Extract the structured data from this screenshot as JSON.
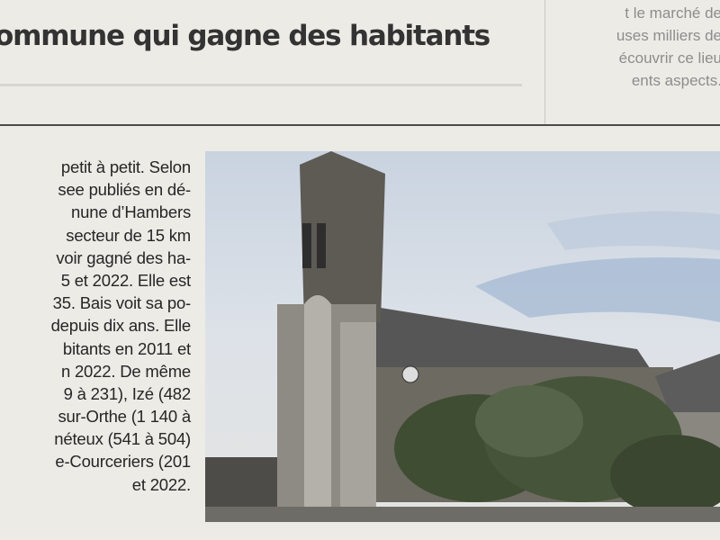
{
  "headline": "ommune qui gagne des habitants",
  "side_column": [
    "t le marché de",
    "uses milliers de",
    "écouvrir ce lieu",
    "ents aspects."
  ],
  "article_lines": [
    "petit à petit. Selon",
    "see publiés en dé-",
    "nune d’Hambers",
    "secteur de 15 km",
    "voir gagné des ha-",
    "5 et 2022. Elle est",
    "35. Bais voit sa po-",
    "depuis dix ans. Elle",
    "bitants en 2011 et",
    "n 2022. De même",
    "9 à 231), Izé (482",
    "sur-Orthe (1 140 à",
    "néteux (541 à 504)",
    "e-Courceriers (201",
    "et 2022."
  ],
  "photo": {
    "subject": "church-with-bell-tower"
  }
}
